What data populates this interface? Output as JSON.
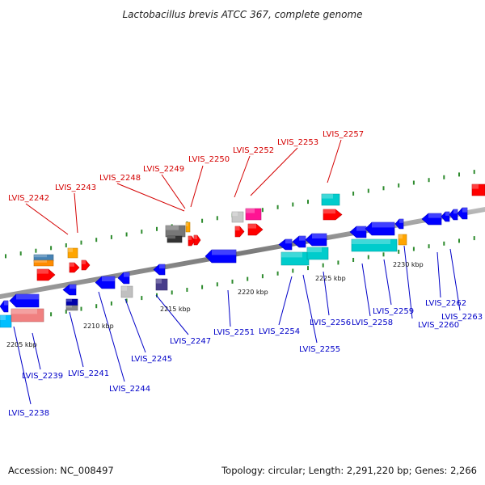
{
  "title": "Lactobacillus brevis ATCC 367, complete genome",
  "footer": {
    "accession": "Accession: NC_008497",
    "summary": "Topology: circular; Length: 2,291,220 bp; Genes: 2,266"
  },
  "colors": {
    "backbone": "#8a8a8a",
    "tick": "#2e8b2e",
    "label_forward": "#d40000",
    "label_reverse": "#0000c8"
  },
  "ticks": [
    "2205 kbp",
    "2210 kbp",
    "2215 kbp",
    "2220 kbp",
    "2225 kbp",
    "2230 kbp"
  ],
  "genes_forward": [
    {
      "label": "LVIS_2242",
      "color": "#ff0000"
    },
    {
      "label": "LVIS_2243",
      "color": "#ff0000"
    },
    {
      "label": "LVIS_2248",
      "color": "#777777"
    },
    {
      "label": "LVIS_2249",
      "color": "#ff0000"
    },
    {
      "label": "LVIS_2250",
      "color": "#ff0000"
    },
    {
      "label": "LVIS_2252",
      "color": "#ff0000"
    },
    {
      "label": "LVIS_2253",
      "color": "#ff1493"
    },
    {
      "label": "LVIS_2257",
      "color": "#00cccc"
    }
  ],
  "genes_reverse": [
    {
      "label": "LVIS_2238",
      "color": "#00bfff"
    },
    {
      "label": "LVIS_2239",
      "color": "#f08080"
    },
    {
      "label": "LVIS_2241",
      "color": "#0000ff"
    },
    {
      "label": "LVIS_2244",
      "color": "#0000ff"
    },
    {
      "label": "LVIS_2245",
      "color": "#c0c0c0"
    },
    {
      "label": "LVIS_2247",
      "color": "#483d8b"
    },
    {
      "label": "LVIS_2251",
      "color": "#0000ff"
    },
    {
      "label": "LVIS_2254",
      "color": "#00cccc"
    },
    {
      "label": "LVIS_2255",
      "color": "#00cccc"
    },
    {
      "label": "LVIS_2256",
      "color": "#0000ff"
    },
    {
      "label": "LVIS_2258",
      "color": "#00cccc"
    },
    {
      "label": "LVIS_2259",
      "color": "#0000ff"
    },
    {
      "label": "LVIS_2260",
      "color": "#ffa500"
    },
    {
      "label": "LVIS_2262",
      "color": "#0000ff"
    },
    {
      "label": "LVIS_2263",
      "color": "#0000ff"
    }
  ]
}
